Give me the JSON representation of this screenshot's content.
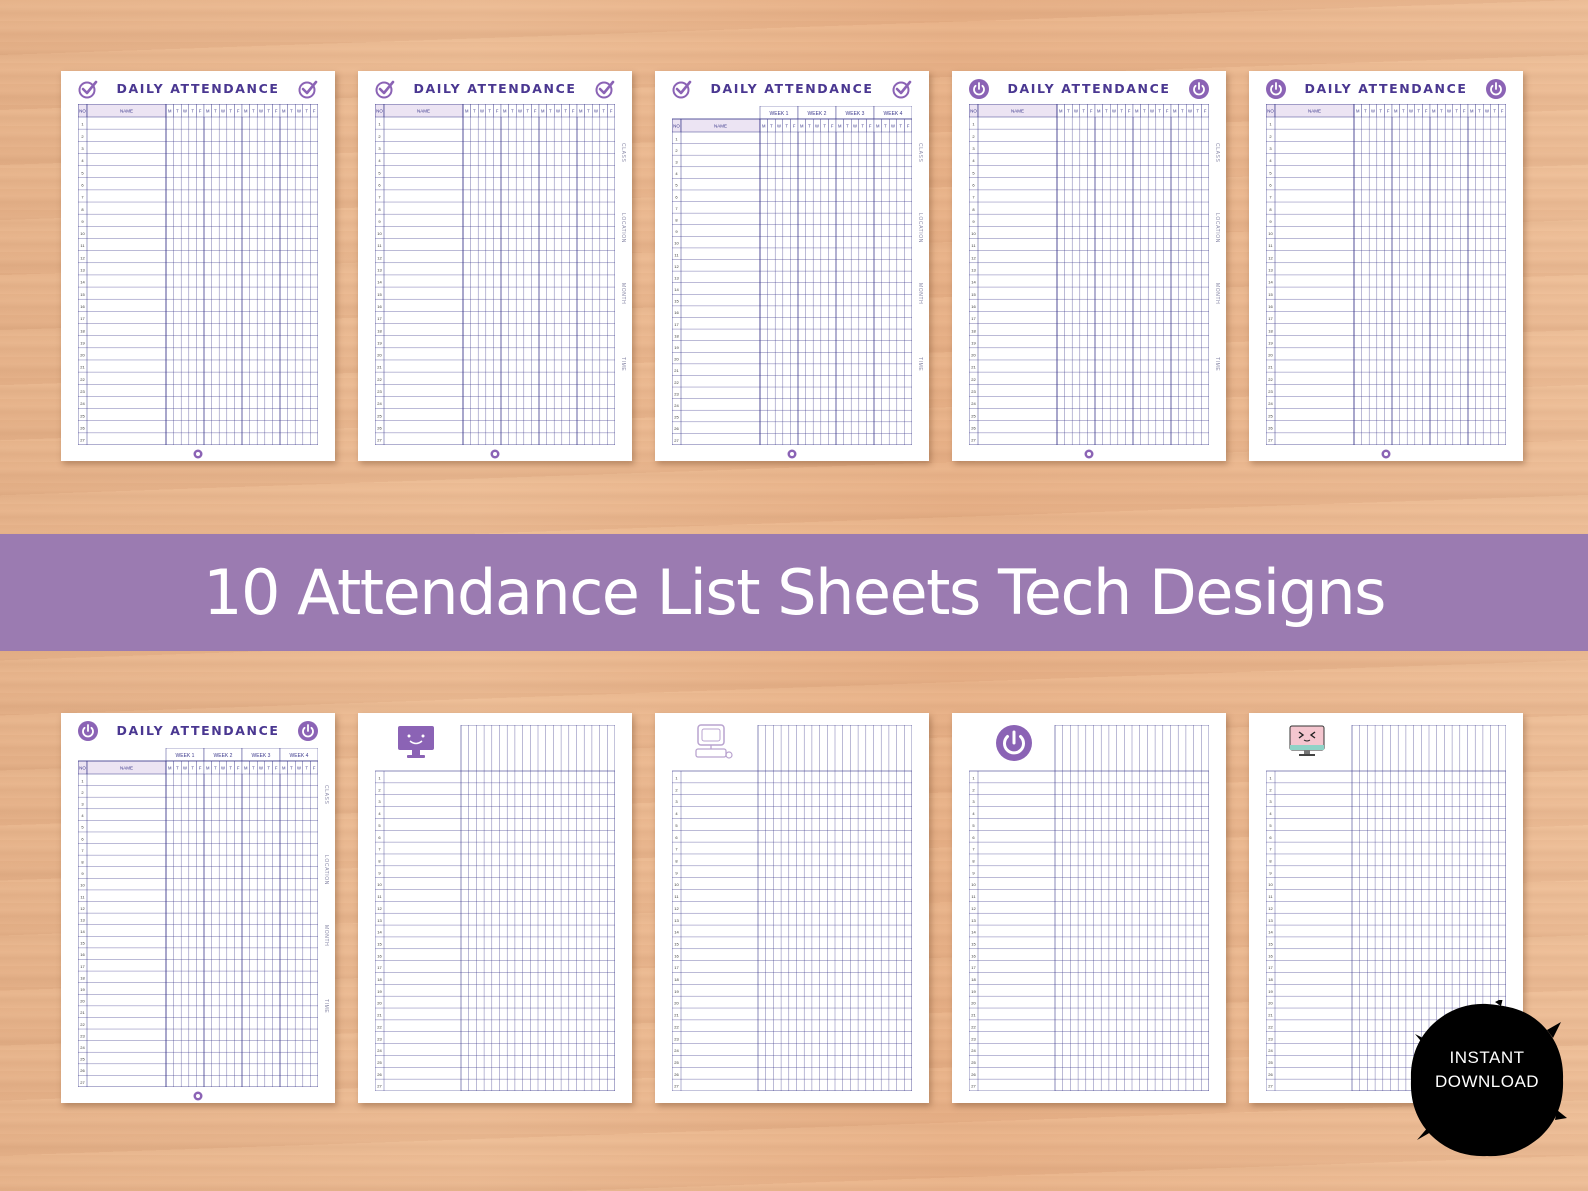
{
  "banner": {
    "title": "10 Attendance List Sheets Tech Designs"
  },
  "badge": {
    "line1": "INSTANT",
    "line2": "DOWNLOAD"
  },
  "sheet_heading": "DAILY ATTENDANCE",
  "column_labels": {
    "number": "NO",
    "name": "NAME"
  },
  "weeks": [
    "WEEK 1",
    "WEEK 2",
    "WEEK 3",
    "WEEK 4"
  ],
  "weekdays": [
    "M",
    "T",
    "W",
    "T",
    "F"
  ],
  "side_labels": [
    "CLASS",
    "LOCATION",
    "MONTH",
    "TIME"
  ],
  "row_count": 27,
  "colors": {
    "banner": "#9b7bb1",
    "grid": "#3d3a8c",
    "header_fill": "#ece4f3",
    "title": "#4a3791",
    "icon": "#8b63b5"
  },
  "sheets": [
    {
      "id": 1,
      "heading": true,
      "icon": "check-icon",
      "weeks": false,
      "side": false,
      "art": null
    },
    {
      "id": 2,
      "heading": true,
      "icon": "check-icon",
      "weeks": false,
      "side": true,
      "art": null
    },
    {
      "id": 3,
      "heading": true,
      "icon": "check-icon",
      "weeks": true,
      "side": true,
      "art": null
    },
    {
      "id": 4,
      "heading": true,
      "icon": "power-icon",
      "weeks": false,
      "side": true,
      "art": null
    },
    {
      "id": 5,
      "heading": true,
      "icon": "power-icon",
      "weeks": false,
      "side": false,
      "art": null
    },
    {
      "id": 6,
      "heading": true,
      "icon": "power-icon",
      "weeks": true,
      "side": true,
      "art": null
    },
    {
      "id": 7,
      "heading": false,
      "icon": null,
      "weeks": false,
      "side": false,
      "art": "monitor-smile-icon"
    },
    {
      "id": 8,
      "heading": false,
      "icon": null,
      "weeks": false,
      "side": false,
      "art": "computer-outline-icon"
    },
    {
      "id": 9,
      "heading": false,
      "icon": null,
      "weeks": false,
      "side": false,
      "art": "power-icon"
    },
    {
      "id": 10,
      "heading": false,
      "icon": null,
      "weeks": false,
      "side": false,
      "art": "monitor-face-icon"
    }
  ]
}
